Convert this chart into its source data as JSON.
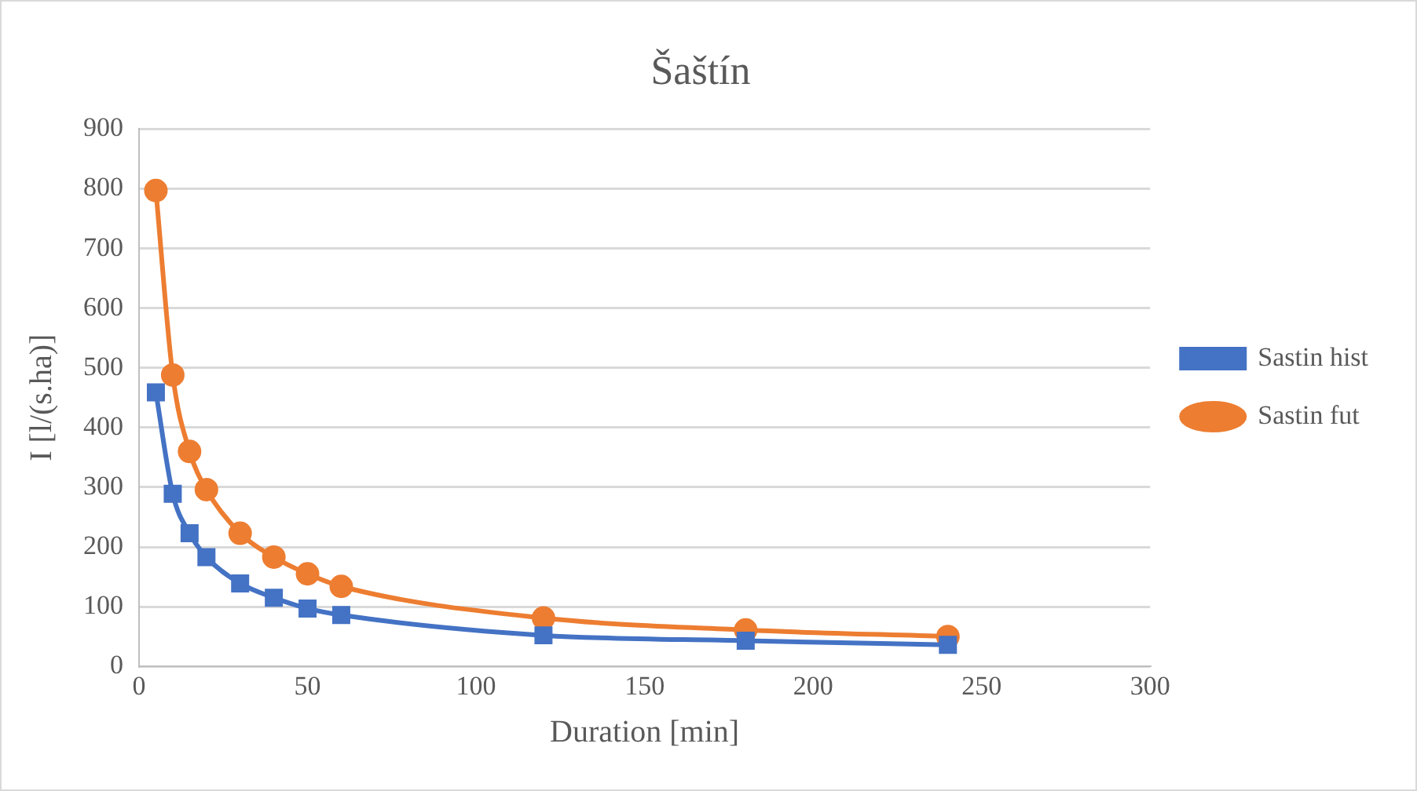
{
  "chart_data": {
    "type": "line",
    "title": "Šaštín",
    "xlabel": "Duration [min]",
    "ylabel": "I [l/(s.ha)]",
    "x": [
      5,
      10,
      15,
      20,
      30,
      40,
      50,
      60,
      120,
      180,
      240
    ],
    "series": [
      {
        "name": "Sastin hist",
        "color": "#4472c4",
        "marker": "square",
        "values": [
          459,
          289,
          223,
          183,
          139,
          115,
          97,
          86,
          52,
          43,
          36
        ]
      },
      {
        "name": "Sastin fut",
        "color": "#ed7d31",
        "marker": "circle",
        "values": [
          797,
          488,
          360,
          296,
          223,
          183,
          155,
          134,
          81,
          61,
          50
        ]
      }
    ],
    "xlim": [
      0,
      300
    ],
    "xticks": [
      0,
      50,
      100,
      150,
      200,
      250,
      300
    ],
    "ylim": [
      0,
      900
    ],
    "yticks": [
      0,
      100,
      200,
      300,
      400,
      500,
      600,
      700,
      800,
      900
    ],
    "grid": "y",
    "legend": "right"
  }
}
